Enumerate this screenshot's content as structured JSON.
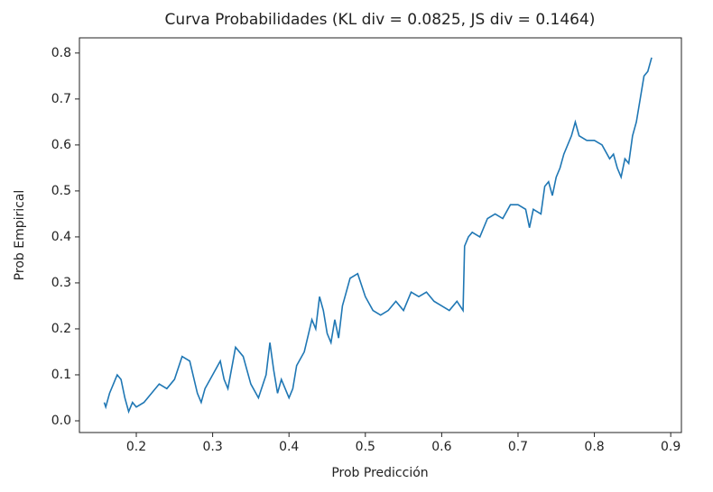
{
  "chart_data": {
    "type": "line",
    "title": "Curva Probabilidades (KL div = 0.0825, JS div = 0.1464)",
    "x_label": "Prob Predicción",
    "y_label": "Prob Empirical",
    "x": [
      0.158,
      0.16,
      0.165,
      0.17,
      0.175,
      0.18,
      0.185,
      0.19,
      0.195,
      0.2,
      0.21,
      0.22,
      0.23,
      0.24,
      0.25,
      0.26,
      0.27,
      0.28,
      0.285,
      0.29,
      0.3,
      0.31,
      0.315,
      0.32,
      0.33,
      0.34,
      0.35,
      0.36,
      0.37,
      0.375,
      0.38,
      0.385,
      0.39,
      0.4,
      0.405,
      0.41,
      0.42,
      0.43,
      0.435,
      0.44,
      0.445,
      0.45,
      0.455,
      0.46,
      0.465,
      0.47,
      0.48,
      0.49,
      0.5,
      0.51,
      0.52,
      0.53,
      0.54,
      0.55,
      0.56,
      0.57,
      0.58,
      0.59,
      0.6,
      0.61,
      0.62,
      0.628,
      0.63,
      0.635,
      0.64,
      0.65,
      0.66,
      0.67,
      0.68,
      0.69,
      0.7,
      0.71,
      0.715,
      0.72,
      0.73,
      0.735,
      0.74,
      0.745,
      0.75,
      0.755,
      0.76,
      0.77,
      0.775,
      0.78,
      0.79,
      0.8,
      0.81,
      0.82,
      0.825,
      0.83,
      0.835,
      0.84,
      0.845,
      0.85,
      0.855,
      0.86,
      0.865,
      0.87,
      0.875
    ],
    "series": [
      {
        "color": "#1f77b4",
        "values": [
          0.04,
          0.03,
          0.06,
          0.08,
          0.1,
          0.09,
          0.05,
          0.02,
          0.04,
          0.03,
          0.04,
          0.06,
          0.08,
          0.07,
          0.09,
          0.14,
          0.13,
          0.06,
          0.04,
          0.07,
          0.1,
          0.13,
          0.09,
          0.07,
          0.16,
          0.14,
          0.08,
          0.05,
          0.1,
          0.17,
          0.11,
          0.06,
          0.09,
          0.05,
          0.07,
          0.12,
          0.15,
          0.22,
          0.2,
          0.27,
          0.24,
          0.19,
          0.17,
          0.22,
          0.18,
          0.25,
          0.31,
          0.32,
          0.27,
          0.24,
          0.23,
          0.24,
          0.26,
          0.24,
          0.28,
          0.27,
          0.28,
          0.26,
          0.25,
          0.24,
          0.26,
          0.24,
          0.38,
          0.4,
          0.41,
          0.4,
          0.44,
          0.45,
          0.44,
          0.47,
          0.47,
          0.46,
          0.42,
          0.46,
          0.45,
          0.51,
          0.52,
          0.49,
          0.53,
          0.55,
          0.58,
          0.62,
          0.65,
          0.62,
          0.61,
          0.61,
          0.6,
          0.57,
          0.58,
          0.55,
          0.53,
          0.57,
          0.56,
          0.62,
          0.65,
          0.7,
          0.75,
          0.76,
          0.79
        ]
      }
    ],
    "xlim": [
      0.1255,
      0.914
    ],
    "ylim": [
      -0.0255,
      0.833
    ],
    "xticks": [
      0.2,
      0.3,
      0.4,
      0.5,
      0.6,
      0.7,
      0.8,
      0.9
    ],
    "yticks": [
      {
        "value": 0,
        "label": "0.0"
      },
      0.1,
      0.2,
      0.3,
      0.4,
      0.5,
      0.6,
      0.7,
      0.8
    ]
  }
}
